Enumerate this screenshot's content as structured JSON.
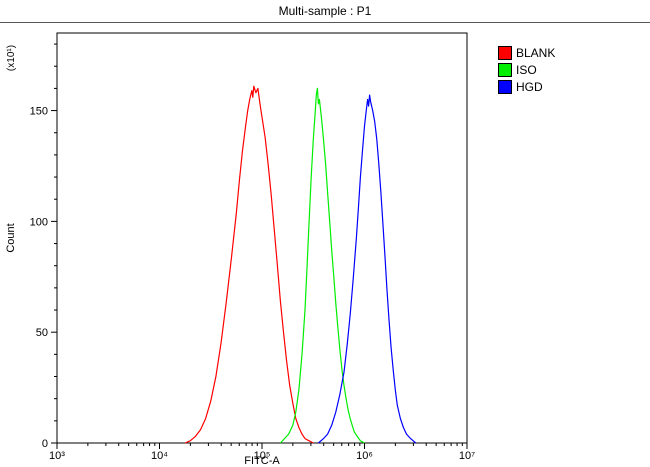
{
  "title": "Multi-sample : P1",
  "legend": {
    "items": [
      {
        "label": "BLANK",
        "color": "#ff0000"
      },
      {
        "label": "ISO",
        "color": "#00ee00"
      },
      {
        "label": "HGD",
        "color": "#0000ff"
      }
    ]
  },
  "chart_data": {
    "type": "line",
    "subtype": "flow-cytometry-histogram-overlay",
    "title": "Multi-sample : P1",
    "xlabel": "FITC-A",
    "ylabel": "Count",
    "ylabel_scale": "(x10¹)",
    "x_scale": "log10",
    "xlim_log": [
      3,
      7
    ],
    "ylim": [
      0,
      185
    ],
    "yticks": [
      0,
      50,
      100,
      150
    ],
    "ytick_minor_step": 10,
    "xtick_log_positions": [
      3,
      4,
      5,
      6,
      7
    ],
    "xtick_labels": [
      "10³",
      "10⁴",
      "10⁵",
      "10⁶",
      "10⁷"
    ],
    "grid": false,
    "legend_position": "right-top",
    "series": [
      {
        "name": "BLANK",
        "color": "#ff0000",
        "peak_logx": 4.9,
        "peak_x": 80000,
        "peak_y": 161,
        "points_logx_y": [
          [
            4.25,
            0
          ],
          [
            4.3,
            1
          ],
          [
            4.35,
            3
          ],
          [
            4.4,
            6
          ],
          [
            4.45,
            11
          ],
          [
            4.5,
            19
          ],
          [
            4.55,
            30
          ],
          [
            4.6,
            45
          ],
          [
            4.65,
            63
          ],
          [
            4.7,
            83
          ],
          [
            4.75,
            104
          ],
          [
            4.78,
            119
          ],
          [
            4.81,
            132
          ],
          [
            4.84,
            143
          ],
          [
            4.86,
            150
          ],
          [
            4.88,
            155
          ],
          [
            4.9,
            159
          ],
          [
            4.91,
            156
          ],
          [
            4.92,
            161
          ],
          [
            4.94,
            158
          ],
          [
            4.96,
            160
          ],
          [
            4.98,
            153
          ],
          [
            5.0,
            147
          ],
          [
            5.03,
            138
          ],
          [
            5.06,
            126
          ],
          [
            5.09,
            112
          ],
          [
            5.12,
            96
          ],
          [
            5.15,
            80
          ],
          [
            5.18,
            64
          ],
          [
            5.21,
            50
          ],
          [
            5.24,
            37
          ],
          [
            5.27,
            26
          ],
          [
            5.3,
            18
          ],
          [
            5.33,
            11
          ],
          [
            5.36,
            7
          ],
          [
            5.39,
            4
          ],
          [
            5.42,
            2
          ],
          [
            5.46,
            1
          ],
          [
            5.5,
            0
          ]
        ]
      },
      {
        "name": "ISO",
        "color": "#00ee00",
        "peak_logx": 5.54,
        "peak_x": 350000,
        "peak_y": 160,
        "points_logx_y": [
          [
            5.18,
            0
          ],
          [
            5.22,
            2
          ],
          [
            5.26,
            4
          ],
          [
            5.3,
            8
          ],
          [
            5.33,
            14
          ],
          [
            5.36,
            24
          ],
          [
            5.39,
            40
          ],
          [
            5.42,
            60
          ],
          [
            5.44,
            80
          ],
          [
            5.46,
            100
          ],
          [
            5.48,
            120
          ],
          [
            5.5,
            137
          ],
          [
            5.52,
            150
          ],
          [
            5.53,
            157
          ],
          [
            5.54,
            160
          ],
          [
            5.55,
            153
          ],
          [
            5.56,
            155
          ],
          [
            5.58,
            147
          ],
          [
            5.6,
            137
          ],
          [
            5.62,
            126
          ],
          [
            5.64,
            113
          ],
          [
            5.66,
            100
          ],
          [
            5.68,
            87
          ],
          [
            5.7,
            75
          ],
          [
            5.72,
            63
          ],
          [
            5.74,
            52
          ],
          [
            5.76,
            42
          ],
          [
            5.78,
            33
          ],
          [
            5.8,
            26
          ],
          [
            5.82,
            20
          ],
          [
            5.84,
            15
          ],
          [
            5.86,
            11
          ],
          [
            5.88,
            8
          ],
          [
            5.9,
            5
          ],
          [
            5.93,
            3
          ],
          [
            5.96,
            1
          ],
          [
            6.0,
            0
          ]
        ]
      },
      {
        "name": "HGD",
        "color": "#0000ff",
        "peak_logx": 6.05,
        "peak_x": 1100000,
        "peak_y": 157,
        "points_logx_y": [
          [
            5.55,
            0
          ],
          [
            5.6,
            2
          ],
          [
            5.64,
            4
          ],
          [
            5.68,
            8
          ],
          [
            5.72,
            14
          ],
          [
            5.76,
            22
          ],
          [
            5.8,
            32
          ],
          [
            5.83,
            44
          ],
          [
            5.86,
            58
          ],
          [
            5.89,
            74
          ],
          [
            5.92,
            92
          ],
          [
            5.94,
            106
          ],
          [
            5.96,
            120
          ],
          [
            5.98,
            132
          ],
          [
            6.0,
            143
          ],
          [
            6.02,
            151
          ],
          [
            6.03,
            155
          ],
          [
            6.04,
            152
          ],
          [
            6.05,
            157
          ],
          [
            6.06,
            154
          ],
          [
            6.08,
            150
          ],
          [
            6.1,
            145
          ],
          [
            6.12,
            137
          ],
          [
            6.14,
            126
          ],
          [
            6.16,
            113
          ],
          [
            6.18,
            99
          ],
          [
            6.2,
            84
          ],
          [
            6.22,
            69
          ],
          [
            6.24,
            55
          ],
          [
            6.26,
            43
          ],
          [
            6.28,
            33
          ],
          [
            6.3,
            24
          ],
          [
            6.32,
            17
          ],
          [
            6.35,
            11
          ],
          [
            6.38,
            7
          ],
          [
            6.41,
            4
          ],
          [
            6.45,
            2
          ],
          [
            6.5,
            0
          ]
        ]
      }
    ]
  }
}
